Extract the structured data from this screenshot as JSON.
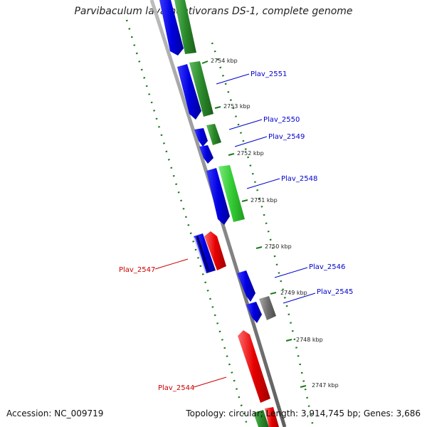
{
  "title": "Parvibaculum lavamentivorans DS-1, complete genome",
  "footer": {
    "accession": "Accession: NC_009719",
    "stats": "Topology: circular; Length: 3,914,745 bp; Genes: 3,686"
  },
  "ticks": [
    "2754 kbp",
    "2753 kbp",
    "2752 kbp",
    "2751 kbp",
    "2750 kbp",
    "2749 kbp",
    "2748 kbp",
    "2747 kbp"
  ],
  "gene_labels": [
    "Plav_2551",
    "Plav_2550",
    "Plav_2549",
    "Plav_2548",
    "Plav_2547",
    "Plav_2546",
    "Plav_2545",
    "Plav_2544"
  ],
  "colors": {
    "backbone": "#8c8c8c",
    "forward_cds": "#0000e6",
    "green_feature": "#2a8a2a",
    "light_green_feature": "#33cc33",
    "reverse_cds": "#e60000",
    "grey_feature": "#707070",
    "tick_dots": "#1a7a1a",
    "label_blue": "#0000cc",
    "label_red": "#cc0000"
  }
}
